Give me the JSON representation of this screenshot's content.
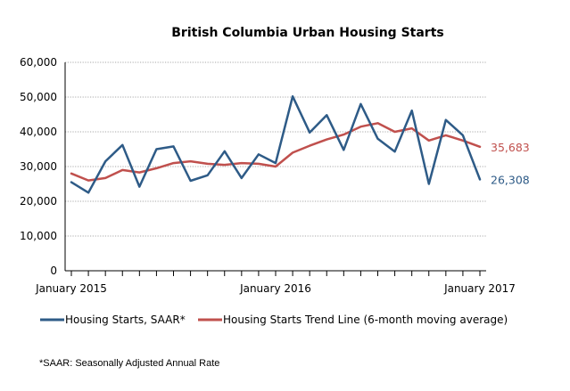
{
  "chart_data": {
    "type": "line",
    "title": "British Columbia Urban Housing Starts",
    "xlabel": "",
    "ylabel": "",
    "ylim": [
      0,
      60000
    ],
    "yticks": [
      0,
      10000,
      20000,
      30000,
      40000,
      50000,
      60000
    ],
    "ytick_labels": [
      "0",
      "10,000",
      "20,000",
      "30,000",
      "40,000",
      "50,000",
      "60,000"
    ],
    "x": [
      "2015-01",
      "2015-02",
      "2015-03",
      "2015-04",
      "2015-05",
      "2015-06",
      "2015-07",
      "2015-08",
      "2015-09",
      "2015-10",
      "2015-11",
      "2015-12",
      "2016-01",
      "2016-02",
      "2016-03",
      "2016-04",
      "2016-05",
      "2016-06",
      "2016-07",
      "2016-08",
      "2016-09",
      "2016-10",
      "2016-11",
      "2016-12",
      "2017-01"
    ],
    "xtick_labels": [
      "January 2015",
      "January 2016",
      "January 2017"
    ],
    "grid": "horizontal",
    "legend_placement": "bottom",
    "series": [
      {
        "name": "Housing Starts, SAAR*",
        "color": "#2e5b87",
        "values": [
          25500,
          22500,
          31500,
          36200,
          24200,
          35000,
          35800,
          25900,
          27500,
          34400,
          26700,
          33500,
          31000,
          50200,
          39800,
          44800,
          34800,
          48000,
          38000,
          34300,
          46100,
          25000,
          43400,
          39000,
          26308
        ],
        "end_label": "26,308"
      },
      {
        "name": "Housing Starts Trend Line (6-month moving average)",
        "color": "#c0504d",
        "values": [
          28000,
          26000,
          26700,
          29000,
          28300,
          29500,
          31000,
          31500,
          30800,
          30500,
          31000,
          30800,
          30000,
          34000,
          36000,
          37800,
          39200,
          41500,
          42500,
          40000,
          41000,
          37500,
          39000,
          37500,
          35683
        ],
        "end_label": "35,683"
      }
    ]
  },
  "footnote": "*SAAR: Seasonally Adjusted Annual Rate"
}
